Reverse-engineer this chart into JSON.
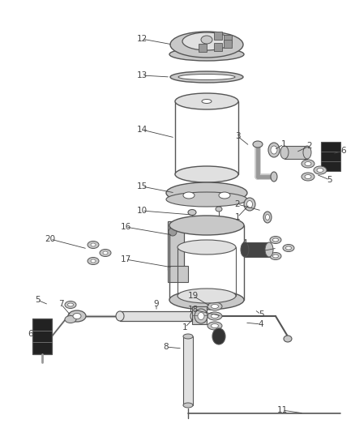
{
  "background_color": "#ffffff",
  "line_color": "#555555",
  "dark_color": "#222222",
  "label_color": "#444444",
  "gray_light": "#e0e0e0",
  "gray_mid": "#c8c8c8",
  "gray_dark": "#999999",
  "figsize": [
    4.38,
    5.33
  ],
  "dpi": 100
}
